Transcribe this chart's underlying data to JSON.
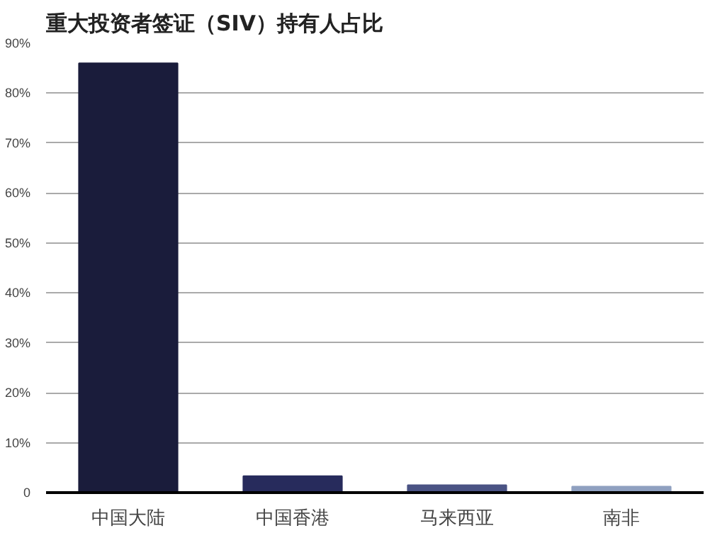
{
  "chart_data": {
    "type": "bar",
    "title": "重大投资者签证（SIV）持有人占比",
    "categories": [
      "中国大陆",
      "中国香港",
      "马来西亚",
      "南非"
    ],
    "values": [
      86,
      3.3,
      1.5,
      1.2
    ],
    "colors": [
      "#1a1c3b",
      "#272b5c",
      "#4a5384",
      "#8fa0c0"
    ],
    "ylim": [
      0,
      90
    ],
    "yticks": [
      {
        "value": 0,
        "label": "0"
      },
      {
        "value": 10,
        "label": "10%"
      },
      {
        "value": 20,
        "label": "20%"
      },
      {
        "value": 30,
        "label": "30%"
      },
      {
        "value": 40,
        "label": "40%"
      },
      {
        "value": 50,
        "label": "50%"
      },
      {
        "value": 60,
        "label": "60%"
      },
      {
        "value": 70,
        "label": "70%"
      },
      {
        "value": 80,
        "label": "80%"
      },
      {
        "value": 90,
        "label": "90%"
      }
    ],
    "grid": "y"
  }
}
